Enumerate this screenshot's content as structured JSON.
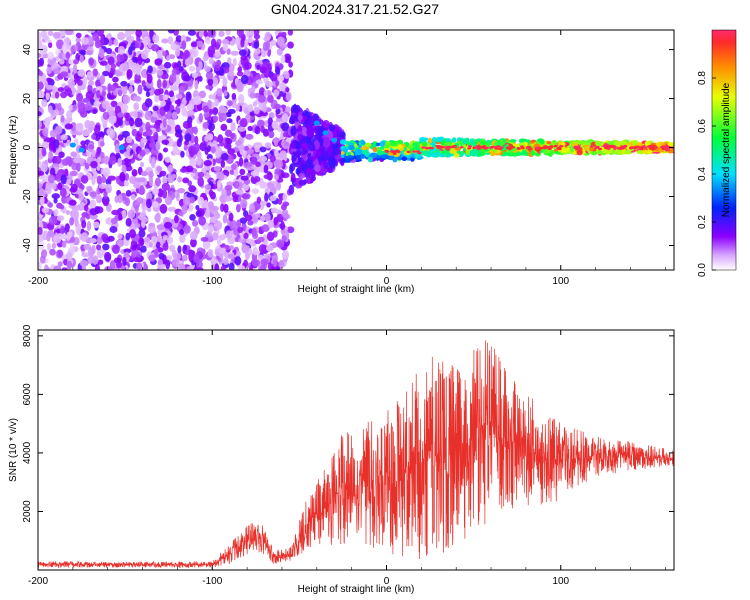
{
  "title": "GN04.2024.317.21.52.G27",
  "colors": {
    "snr_line": "#e8302a",
    "colormap": [
      "#ffffff",
      "#8a00ff",
      "#0022ff",
      "#00e0ff",
      "#00ff3a",
      "#e8ff00",
      "#ff8a00",
      "#ff2a2a",
      "#ff2a6e"
    ]
  },
  "chart_data": [
    {
      "type": "heatmap",
      "name": "spectrogram",
      "xlabel": "Height of straight line (km)",
      "ylabel": "Frequency (Hz)",
      "xlim": [
        -200,
        165
      ],
      "ylim": [
        -50,
        48
      ],
      "xticks": [
        -200,
        -100,
        0,
        100
      ],
      "yticks": [
        -40,
        -20,
        0,
        20,
        40
      ],
      "description_regions": [
        {
          "x_range": [
            -200,
            -55
          ],
          "freq_spread": 48,
          "amplitude": 0.1
        },
        {
          "x_range": [
            -55,
            -25
          ],
          "freq_spread": 18,
          "amplitude": 0.15
        },
        {
          "x_range": [
            -25,
            165
          ],
          "freq_spread": 3,
          "amplitude": 0.9
        }
      ],
      "colorbar": {
        "label": "Normalized spectral amplitude",
        "range": [
          0,
          1
        ],
        "ticks": [
          0.0,
          0.2,
          0.4,
          0.6,
          0.8
        ]
      }
    },
    {
      "type": "line",
      "name": "snr",
      "xlabel": "Height of straight line (km)",
      "ylabel": "SNR (10 * v/v)",
      "xlim": [
        -200,
        165
      ],
      "ylim": [
        0,
        8200
      ],
      "xticks": [
        -200,
        -100,
        0,
        100
      ],
      "yticks": [
        2000,
        4000,
        6000,
        8000
      ],
      "envelope": [
        {
          "x": -200,
          "min": 80,
          "max": 300
        },
        {
          "x": -150,
          "min": 80,
          "max": 280
        },
        {
          "x": -100,
          "min": 80,
          "max": 300
        },
        {
          "x": -90,
          "min": 200,
          "max": 900
        },
        {
          "x": -80,
          "min": 500,
          "max": 1500
        },
        {
          "x": -73,
          "min": 600,
          "max": 1800
        },
        {
          "x": -65,
          "min": 200,
          "max": 700
        },
        {
          "x": -55,
          "min": 300,
          "max": 800
        },
        {
          "x": -45,
          "min": 600,
          "max": 2600
        },
        {
          "x": -35,
          "min": 800,
          "max": 3500
        },
        {
          "x": -25,
          "min": 900,
          "max": 4800
        },
        {
          "x": -15,
          "min": 800,
          "max": 5000
        },
        {
          "x": -5,
          "min": 700,
          "max": 5200
        },
        {
          "x": 10,
          "min": 400,
          "max": 6000
        },
        {
          "x": 25,
          "min": 300,
          "max": 7600
        },
        {
          "x": 40,
          "min": 800,
          "max": 6900
        },
        {
          "x": 58,
          "min": 1500,
          "max": 8000
        },
        {
          "x": 70,
          "min": 2000,
          "max": 6800
        },
        {
          "x": 85,
          "min": 2000,
          "max": 5900
        },
        {
          "x": 100,
          "min": 2400,
          "max": 5000
        },
        {
          "x": 120,
          "min": 3200,
          "max": 4600
        },
        {
          "x": 140,
          "min": 3400,
          "max": 4400
        },
        {
          "x": 165,
          "min": 3500,
          "max": 4100
        }
      ]
    }
  ]
}
